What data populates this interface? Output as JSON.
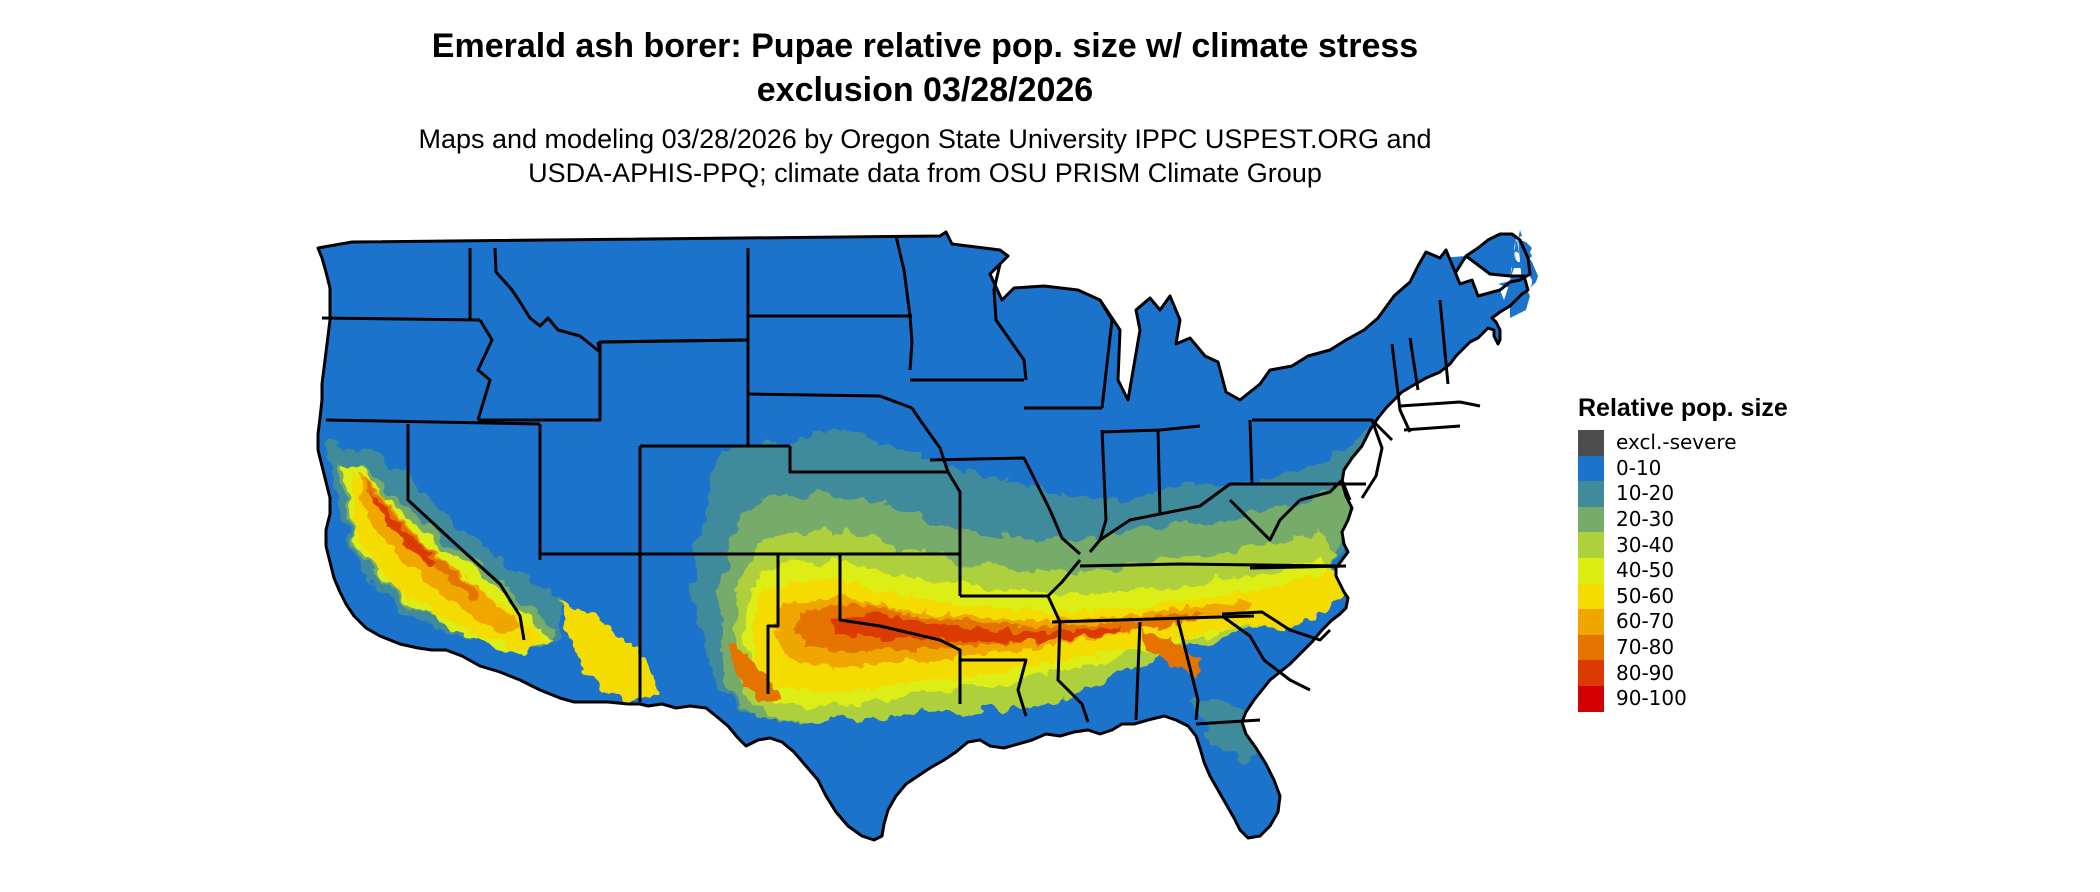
{
  "title": {
    "line1": "Emerald ash borer: Pupae relative pop. size w/ climate stress",
    "line2": "exclusion 03/28/2026"
  },
  "subtitle": {
    "line1": "Maps and modeling 03/28/2026 by Oregon State University IPPC USPEST.ORG and",
    "line2": "USDA-APHIS-PPQ; climate data from OSU PRISM Climate Group"
  },
  "legend": {
    "title": "Relative pop. size",
    "items": [
      {
        "label": "excl.-severe",
        "color": "#4d4d4d"
      },
      {
        "label": "0-10",
        "color": "#1b73cc"
      },
      {
        "label": "10-20",
        "color": "#3f8b9b"
      },
      {
        "label": "20-30",
        "color": "#76ab6a"
      },
      {
        "label": "30-40",
        "color": "#aed03d"
      },
      {
        "label": "40-50",
        "color": "#dded14"
      },
      {
        "label": "50-60",
        "color": "#f5dc00"
      },
      {
        "label": "60-70",
        "color": "#efa700"
      },
      {
        "label": "70-80",
        "color": "#e57300"
      },
      {
        "label": "80-90",
        "color": "#db3a00"
      },
      {
        "label": "90-100",
        "color": "#d20000"
      }
    ]
  },
  "map_colors": {
    "base": "#1b73cc",
    "state_border": "#000000"
  }
}
